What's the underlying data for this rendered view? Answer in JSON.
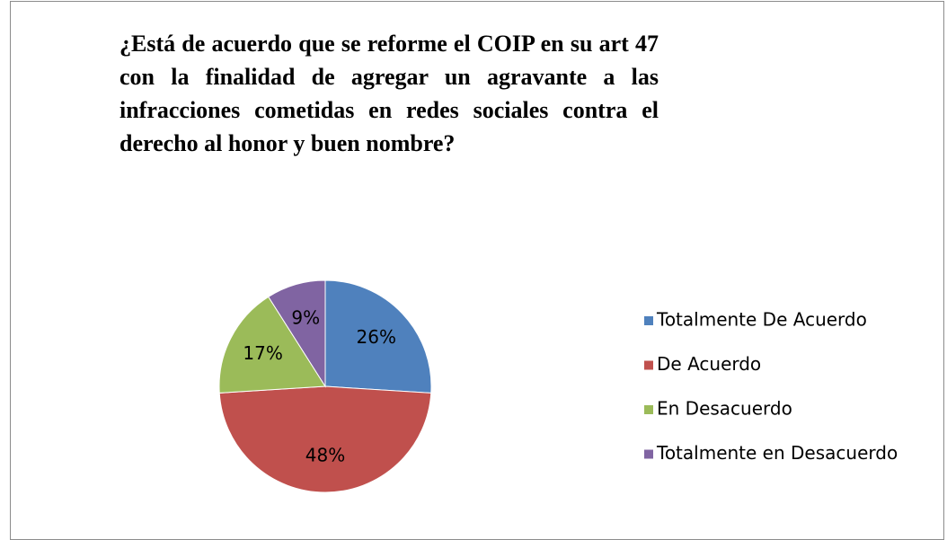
{
  "chart_data": {
    "type": "pie",
    "title": "¿Está de acuerdo que se reforme el COIP en su art 47 con la finalidad de agregar un agravante a las infracciones cometidas en redes sociales contra el derecho al honor y buen nombre?",
    "categories": [
      "Totalmente De Acuerdo",
      "De Acuerdo",
      "En Desacuerdo",
      "Totalmente en Desacuerdo"
    ],
    "values": [
      26,
      48,
      17,
      9
    ],
    "value_labels": [
      "26%",
      "48%",
      "17%",
      "9%"
    ],
    "colors": [
      "#4f81bd",
      "#c0504d",
      "#9bbb59",
      "#8064a2"
    ],
    "legend": "right"
  }
}
